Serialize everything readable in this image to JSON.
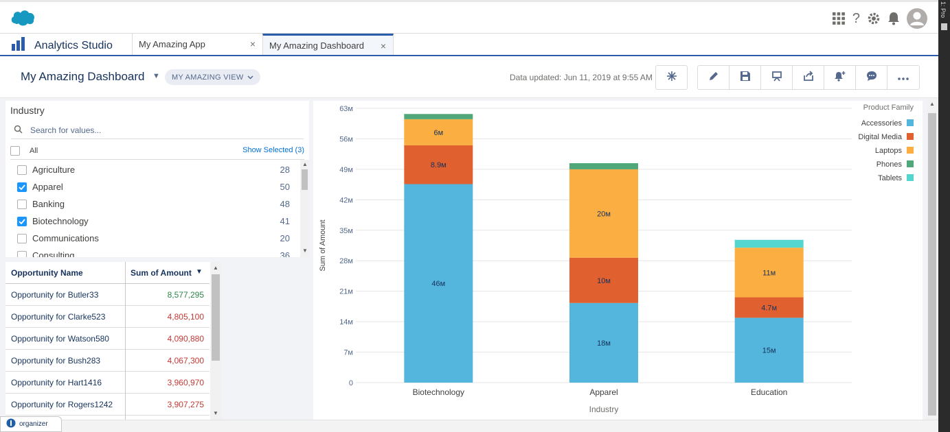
{
  "header": {
    "logo_name": "salesforce-cloud"
  },
  "tabbar": {
    "app_name": "Analytics Studio",
    "tabs": [
      {
        "label": "My Amazing App",
        "close": "×"
      },
      {
        "label": "My Amazing Dashboard",
        "close": "×"
      }
    ]
  },
  "dashboard": {
    "title": "My Amazing Dashboard",
    "view_pill": "MY AMAZING VIEW",
    "updated": "Data updated: Jun 11, 2019 at 9:55 AM"
  },
  "filter": {
    "title": "Industry",
    "search_placeholder": "Search for values...",
    "all_label": "All",
    "show_selected": "Show Selected (3)",
    "items": [
      {
        "label": "Agriculture",
        "count": "28",
        "checked": false
      },
      {
        "label": "Apparel",
        "count": "50",
        "checked": true
      },
      {
        "label": "Banking",
        "count": "48",
        "checked": false
      },
      {
        "label": "Biotechnology",
        "count": "41",
        "checked": true
      },
      {
        "label": "Communications",
        "count": "20",
        "checked": false
      },
      {
        "label": "Consulting",
        "count": "36",
        "checked": false
      }
    ]
  },
  "table": {
    "columns": [
      "Opportunity Name",
      "Sum of Amount"
    ],
    "rows": [
      {
        "name": "Opportunity for Butler33",
        "amount": "8,577,295",
        "color": "#2e844a"
      },
      {
        "name": "Opportunity for Clarke523",
        "amount": "4,805,100",
        "color": "#c23934"
      },
      {
        "name": "Opportunity for Watson580",
        "amount": "4,090,880",
        "color": "#c23934"
      },
      {
        "name": "Opportunity for Bush283",
        "amount": "4,067,300",
        "color": "#c23934"
      },
      {
        "name": "Opportunity for Hart1416",
        "amount": "3,960,970",
        "color": "#c23934"
      },
      {
        "name": "Opportunity for Rogers1242",
        "amount": "3,907,275",
        "color": "#c23934"
      }
    ]
  },
  "organizer": {
    "label": "organizer"
  },
  "chart_data": {
    "type": "bar",
    "stacked": true,
    "categories": [
      "Biotechnology",
      "Apparel",
      "Education"
    ],
    "xlabel": "Industry",
    "ylabel": "Sum of Amount",
    "ylim": [
      0,
      63
    ],
    "yticks": [
      0,
      7,
      14,
      21,
      28,
      35,
      42,
      49,
      56,
      63
    ],
    "ytick_labels": [
      "0",
      "7м",
      "14м",
      "21м",
      "28м",
      "35м",
      "42м",
      "49м",
      "56м",
      "63м"
    ],
    "legend_title": "Product Family",
    "legend_position": "top-right",
    "series": [
      {
        "name": "Accessories",
        "color": "#54b6dc",
        "values": [
          45.6,
          18.3,
          14.9
        ],
        "labels": [
          "46м",
          "18м",
          "15м"
        ]
      },
      {
        "name": "Digital Media",
        "color": "#e0602f",
        "values": [
          8.9,
          10.4,
          4.7
        ],
        "labels": [
          "8.9м",
          "10м",
          "4.7м"
        ]
      },
      {
        "name": "Laptops",
        "color": "#fbae41",
        "values": [
          6.0,
          20.3,
          11.4
        ],
        "labels": [
          "6м",
          "20м",
          "11м"
        ]
      },
      {
        "name": "Phones",
        "color": "#4fa77a",
        "values": [
          1.2,
          1.4,
          0.0
        ],
        "labels": [
          "",
          "",
          ""
        ]
      },
      {
        "name": "Tablets",
        "color": "#53d5d0",
        "values": [
          0.0,
          0.0,
          1.8
        ],
        "labels": [
          "",
          "",
          ""
        ]
      }
    ]
  }
}
